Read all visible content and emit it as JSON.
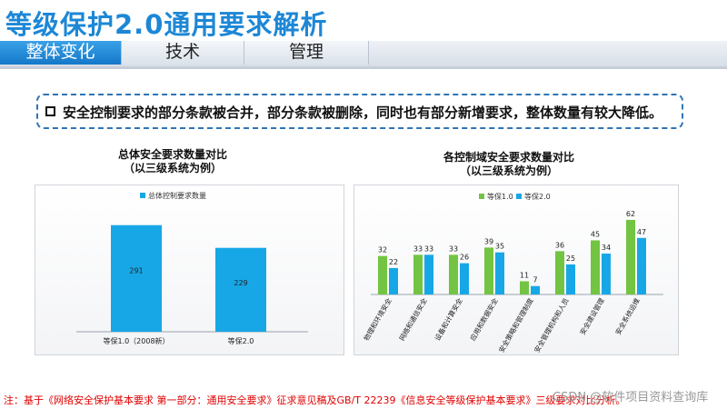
{
  "page": {
    "title": "等级保护2.0通用要求解析"
  },
  "tabs": [
    {
      "label": "整体变化",
      "active": true
    },
    {
      "label": "技术",
      "active": false
    },
    {
      "label": "管理",
      "active": false
    }
  ],
  "banner": {
    "text": "安全控制要求的部分条款被合并，部分条款被删除，同时也有部分新增要求，整体数量有较大降低。"
  },
  "colors": {
    "blue": "#17a7e6",
    "green": "#72c442",
    "accent": "#1d87d6"
  },
  "chart_data": [
    {
      "type": "bar",
      "title": "总体安全要求数量对比",
      "subtitle": "（以三级系统为例）",
      "categories": [
        "等保1.0（2008新）",
        "等保2.0"
      ],
      "series": [
        {
          "name": "总体控制要求数量",
          "values": [
            291,
            229
          ]
        }
      ],
      "ylim": [
        0,
        330
      ],
      "grid": false,
      "legend": "top-center"
    },
    {
      "type": "bar",
      "title": "各控制域安全要求数量对比",
      "subtitle": "（以三级系统为例）",
      "categories": [
        "物理和环境安全",
        "网络和通信安全",
        "设备和计算安全",
        "应用和数据安全",
        "安全策略和管理制度",
        "安全管理机构和人员",
        "安全建设管理",
        "安全系统运维"
      ],
      "series": [
        {
          "name": "等保1.0",
          "values": [
            32,
            33,
            33,
            39,
            11,
            36,
            45,
            62
          ]
        },
        {
          "name": "等保2.0",
          "values": [
            22,
            33,
            26,
            35,
            7,
            25,
            34,
            47
          ]
        }
      ],
      "ylim": [
        0,
        68
      ],
      "grid": false,
      "legend": "top-center"
    }
  ],
  "footnote": "注：基于《网络安全保护基本要求 第一部分：通用安全要求》征求意见稿及GB/T 22239《信息安全等级保护基本要求》三级要求对比分析。",
  "watermark": "CSDN @软件项目资料查询库"
}
